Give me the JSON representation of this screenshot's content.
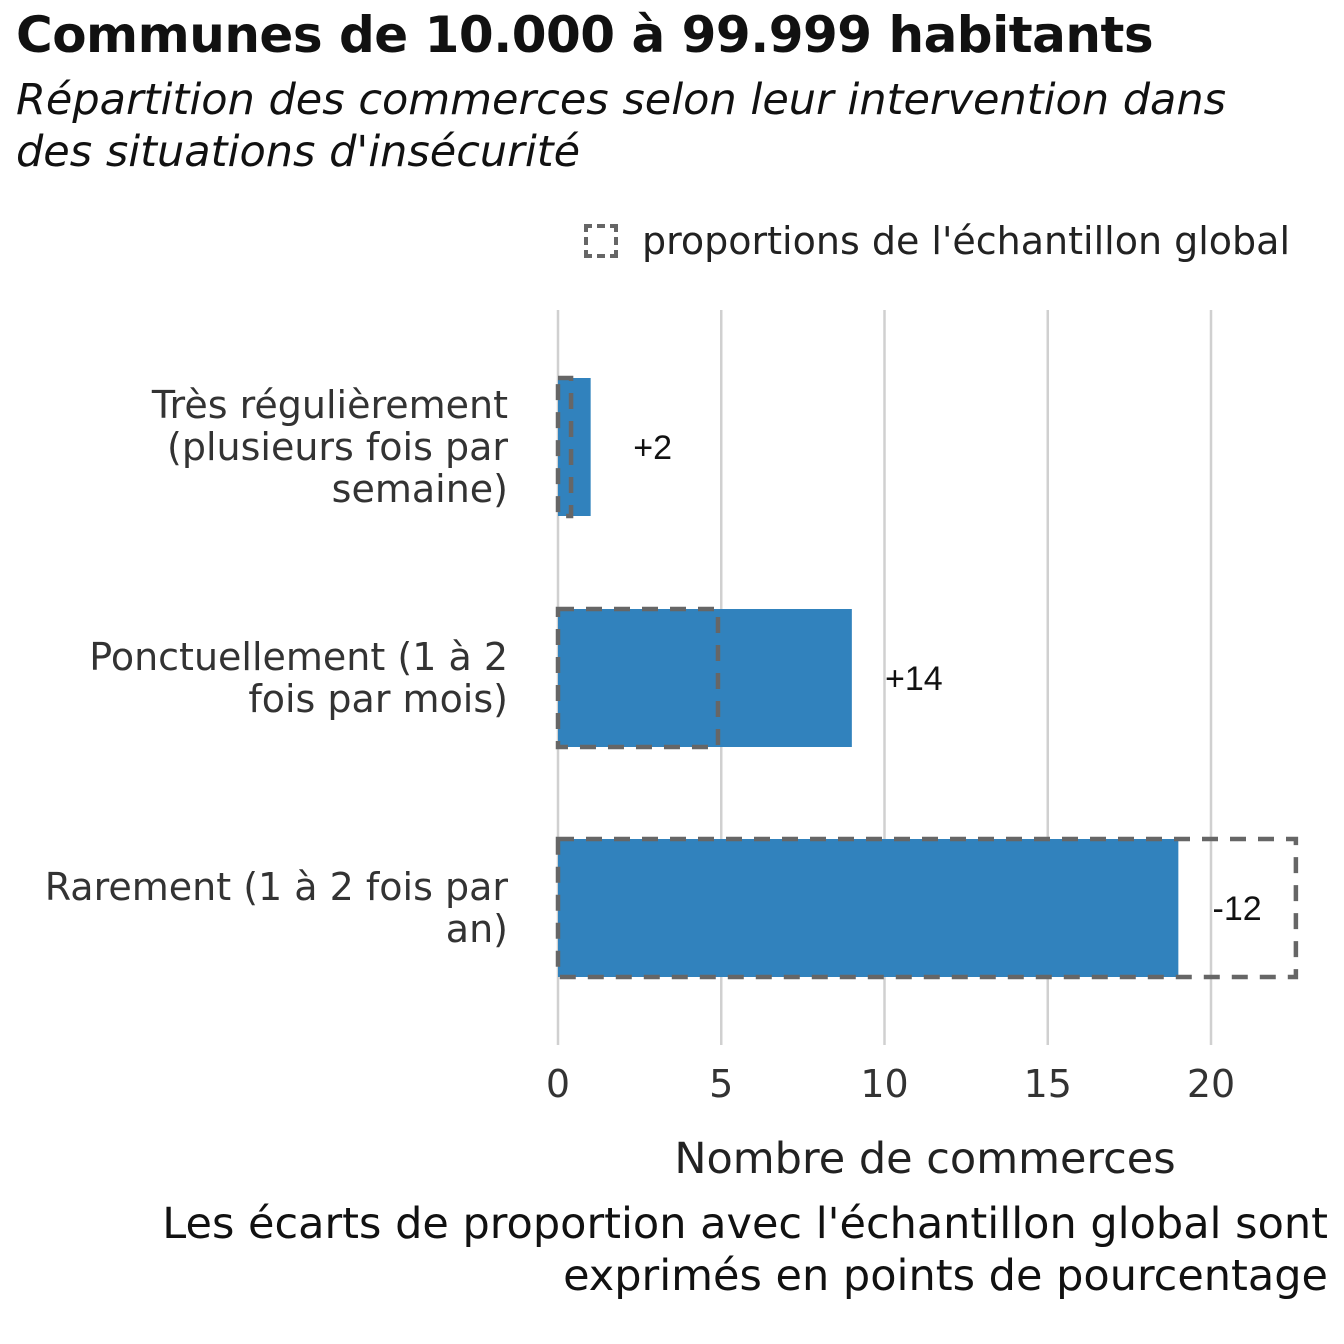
{
  "title": "Communes de 10.000 à 99.999 habitants",
  "subtitle": "Répartition des commerces selon leur intervention dans des situations d'insécurité",
  "legend": {
    "label": "proportions de l'échantillon global"
  },
  "caption": "Les écarts de proportion avec l'échantillon global sont exprimés en points de pourcentage",
  "chart_data": {
    "type": "bar",
    "orientation": "horizontal",
    "xlabel": "Nombre de commerces",
    "xlim": [
      0,
      23
    ],
    "x_ticks": [
      0,
      5,
      10,
      15,
      20
    ],
    "grid": true,
    "legend_position": "top-right",
    "bar_color": "#3182bd",
    "reference_color": "#666666",
    "categories": [
      [
        "Très régulièrement",
        "(plusieurs fois par",
        "semaine)"
      ],
      [
        "Ponctuellement (1 à 2",
        "fois par mois)"
      ],
      [
        "Rarement (1 à 2 fois par",
        "an)"
      ]
    ],
    "series": [
      {
        "values": [
          1,
          9,
          19
        ]
      },
      {
        "name": "proportions de l'échantillon global",
        "values": [
          0.4,
          4.9,
          22.6
        ]
      }
    ],
    "data_labels": [
      "+2",
      "+14",
      "-12"
    ]
  }
}
